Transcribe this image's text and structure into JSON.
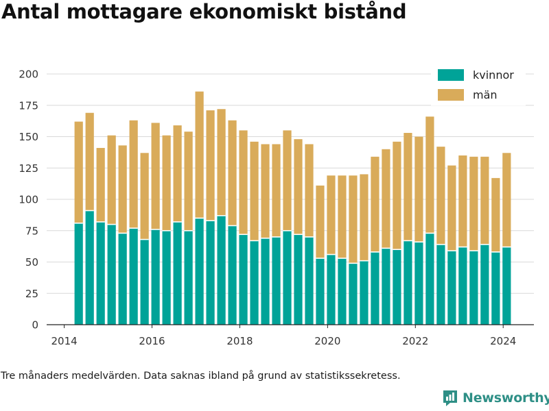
{
  "page": {
    "title": "Antal mottagare ekonomiskt bistånd",
    "footnote": "Tre månaders medelvärden. Data saknas ibland på grund av statistikssekretess.",
    "brand": "Newsworthy",
    "brand_color": "#2e8f86"
  },
  "chart_data": {
    "type": "bar",
    "stacked": true,
    "title": "Antal mottagare ekonomiskt bistånd",
    "xlabel": "",
    "ylabel": "",
    "ylim": [
      0,
      200
    ],
    "yticks": [
      0,
      25,
      50,
      75,
      100,
      125,
      150,
      175,
      200
    ],
    "xlim": [
      2013.6,
      2024.7
    ],
    "xticks": [
      2014,
      2016,
      2018,
      2020,
      2022,
      2024
    ],
    "grid": "horizontal",
    "legend_position": "top-right",
    "x": [
      2014.33,
      2014.58,
      2014.83,
      2015.08,
      2015.33,
      2015.58,
      2015.83,
      2016.08,
      2016.33,
      2016.58,
      2016.83,
      2017.08,
      2017.33,
      2017.58,
      2017.83,
      2018.08,
      2018.33,
      2018.58,
      2018.83,
      2019.08,
      2019.33,
      2019.58,
      2019.83,
      2020.08,
      2020.33,
      2020.58,
      2020.83,
      2021.08,
      2021.33,
      2021.58,
      2021.83,
      2022.08,
      2022.33,
      2022.58,
      2022.83,
      2023.08,
      2023.33,
      2023.58,
      2023.83,
      2024.08
    ],
    "series": [
      {
        "name": "kvinnor",
        "color": "#00a398",
        "values": [
          81,
          91,
          82,
          80,
          73,
          77,
          68,
          76,
          75,
          82,
          75,
          85,
          83,
          87,
          79,
          72,
          67,
          69,
          70,
          75,
          72,
          70,
          53,
          56,
          53,
          49,
          51,
          58,
          61,
          60,
          67,
          66,
          73,
          64,
          59,
          62,
          59,
          64,
          58,
          62
        ]
      },
      {
        "name": "män",
        "color": "#d9ab5a",
        "values": [
          81,
          78,
          59,
          71,
          70,
          86,
          69,
          85,
          76,
          77,
          79,
          101,
          88,
          85,
          84,
          83,
          79,
          75,
          74,
          80,
          76,
          74,
          58,
          63,
          66,
          70,
          69,
          76,
          79,
          86,
          86,
          84,
          93,
          78,
          68,
          73,
          75,
          70,
          59,
          75
        ]
      }
    ]
  }
}
